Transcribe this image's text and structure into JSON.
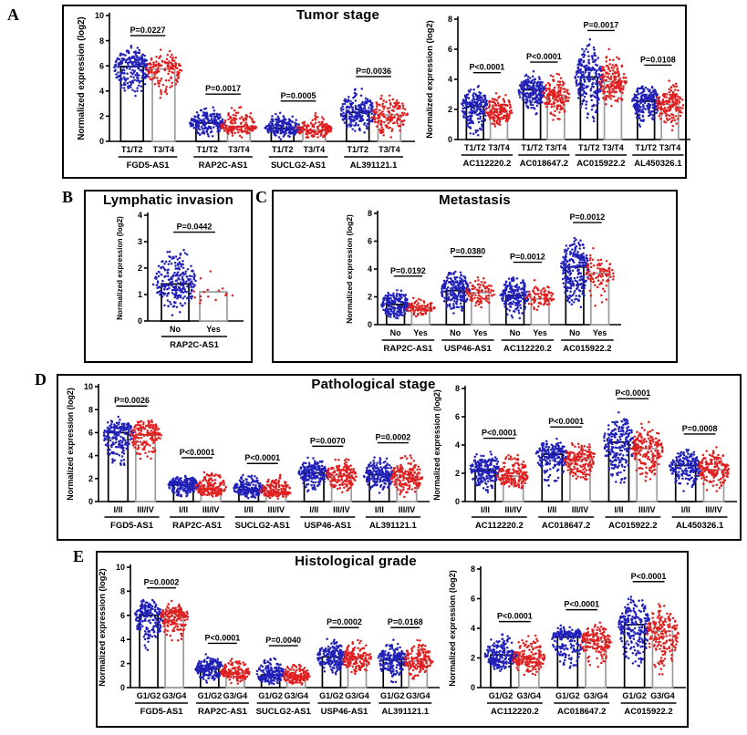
{
  "colors": {
    "blue_dots": "#2121b8",
    "red_dots": "#e02020",
    "bar_fill": "#ffffff",
    "bar_outline_first": "#000000",
    "bar_outline_second": "#9c9c9c",
    "axis": "#000000",
    "panel_border": "#000000",
    "text": "#000000"
  },
  "chart_data": [
    {
      "panel": "A",
      "label": "A",
      "title": "Tumor stage",
      "type": "scatter",
      "ylabel": "Normalized expression (log2)",
      "legend": {
        "group1_color": "blue",
        "group2_color": "red"
      },
      "plots": [
        {
          "ylim": [
            0,
            10
          ],
          "yticks": [
            0,
            2,
            4,
            6,
            8,
            10
          ],
          "group_labels": [
            "T1/T2",
            "T3/T4"
          ],
          "genes": [
            {
              "name": "FGD5-AS1",
              "p": "P=0.0227",
              "bars": [
                5.95,
                5.75
              ],
              "spread": [
                [
                  2.6,
                  7.75
                ],
                [
                  3.2,
                  7.5
                ]
              ],
              "n": [
                220,
                150
              ]
            },
            {
              "name": "RAP2C-AS1",
              "p": "P=0.0017",
              "bars": [
                1.45,
                1.2
              ],
              "spread": [
                [
                  0.25,
                  2.9
                ],
                [
                  0.2,
                  3.1
                ]
              ],
              "n": [
                190,
                140
              ]
            },
            {
              "name": "SUCLG2-AS1",
              "p": "P=0.0005",
              "bars": [
                1.05,
                0.9
              ],
              "spread": [
                [
                  0.1,
                  2.55
                ],
                [
                  0.1,
                  2.3
                ]
              ],
              "n": [
                190,
                140
              ]
            },
            {
              "name": "AL391121.1",
              "p": "P=0.0036",
              "bars": [
                2.3,
                2.1
              ],
              "spread": [
                [
                  0.3,
                  4.5
                ],
                [
                  0.1,
                  4.3
                ]
              ],
              "n": [
                220,
                160
              ]
            }
          ]
        },
        {
          "ylim": [
            0,
            8
          ],
          "yticks": [
            0,
            2,
            4,
            6,
            8
          ],
          "group_labels": [
            "T1/T2",
            "T3/T4"
          ],
          "genes": [
            {
              "name": "AC112220.2",
              "p": "P<0.0001",
              "bars": [
                2.2,
                1.9
              ],
              "spread": [
                [
                  0.05,
                  3.9
                ],
                [
                  0.7,
                  3.4
                ]
              ],
              "n": [
                200,
                150
              ]
            },
            {
              "name": "AC018647.2",
              "p": "P<0.0001",
              "bars": [
                3.3,
                2.95
              ],
              "spread": [
                [
                  1.4,
                  4.6
                ],
                [
                  1.0,
                  4.6
                ]
              ],
              "n": [
                200,
                150
              ]
            },
            {
              "name": "AC015922.2",
              "p": "P=0.0017",
              "bars": [
                4.15,
                3.85
              ],
              "spread": [
                [
                  0.5,
                  6.7
                ],
                [
                  1.6,
                  6.3
                ]
              ],
              "n": [
                240,
                170
              ]
            },
            {
              "name": "AL450326.1",
              "p": "P=0.0108",
              "bars": [
                2.55,
                2.35
              ],
              "spread": [
                [
                  0.4,
                  4.0
                ],
                [
                  0.3,
                  4.4
                ]
              ],
              "n": [
                200,
                150
              ]
            }
          ]
        }
      ]
    },
    {
      "panel": "B",
      "label": "B",
      "title": "Lymphatic invasion",
      "type": "scatter",
      "ylabel": "Normalized expression (log2)",
      "plots": [
        {
          "ylim": [
            0,
            4
          ],
          "yticks": [
            0,
            1,
            2,
            3,
            4
          ],
          "group_labels": [
            "No",
            "Yes"
          ],
          "genes": [
            {
              "name": "RAP2C-AS1",
              "p": "P=0.0442",
              "bars": [
                1.4,
                1.1
              ],
              "spread": [
                [
                  0.15,
                  3.05
                ],
                [
                  0.25,
                  1.95
                ]
              ],
              "n": [
                240,
                16
              ]
            }
          ]
        }
      ]
    },
    {
      "panel": "C",
      "label": "C",
      "title": "Metastasis",
      "type": "scatter",
      "ylabel": "Normalized expression (log2)",
      "plots": [
        {
          "ylim": [
            0,
            8
          ],
          "yticks": [
            0,
            2,
            4,
            6,
            8
          ],
          "group_labels": [
            "No",
            "Yes"
          ],
          "genes": [
            {
              "name": "RAP2C-AS1",
              "p": "P=0.0192",
              "bars": [
                1.45,
                1.2
              ],
              "spread": [
                [
                  0.2,
                  2.9
                ],
                [
                  0.4,
                  2.2
                ]
              ],
              "n": [
                200,
                80
              ]
            },
            {
              "name": "USP46-AS1",
              "p": "P=0.0380",
              "bars": [
                2.45,
                2.3
              ],
              "spread": [
                [
                  0.5,
                  4.3
                ],
                [
                  0.9,
                  3.9
                ]
              ],
              "n": [
                220,
                90
              ]
            },
            {
              "name": "AC112220.2",
              "p": "P=0.0012",
              "bars": [
                2.1,
                1.85
              ],
              "spread": [
                [
                  0.1,
                  3.9
                ],
                [
                  0.8,
                  3.5
                ]
              ],
              "n": [
                200,
                80
              ]
            },
            {
              "name": "AC015922.2",
              "p": "P=0.0012",
              "bars": [
                4.15,
                3.7
              ],
              "spread": [
                [
                  0.4,
                  6.75
                ],
                [
                  1.0,
                  6.1
                ]
              ],
              "n": [
                260,
                90
              ]
            }
          ]
        }
      ]
    },
    {
      "panel": "D",
      "label": "D",
      "title": "Pathological stage",
      "type": "scatter",
      "ylabel": "Normalized expression (log2)",
      "plots": [
        {
          "ylim": [
            0,
            10
          ],
          "yticks": [
            0,
            2,
            4,
            6,
            8,
            10
          ],
          "group_labels": [
            "I/II",
            "III/IV"
          ],
          "genes": [
            {
              "name": "FGD5-AS1",
              "p": "P=0.0026",
              "bars": [
                6.0,
                5.8
              ],
              "spread": [
                [
                  2.6,
                  7.6
                ],
                [
                  3.2,
                  7.5
                ]
              ],
              "n": [
                200,
                170
              ]
            },
            {
              "name": "RAP2C-AS1",
              "p": "P<0.0001",
              "bars": [
                1.45,
                1.15
              ],
              "spread": [
                [
                  0.2,
                  2.5
                ],
                [
                  0.2,
                  3.1
                ]
              ],
              "n": [
                190,
                160
              ]
            },
            {
              "name": "SUCLG2-AS1",
              "p": "P<0.0001",
              "bars": [
                1.05,
                0.85
              ],
              "spread": [
                [
                  0.1,
                  2.6
                ],
                [
                  0.1,
                  2.5
                ]
              ],
              "n": [
                190,
                160
              ]
            },
            {
              "name": "USP46-AS1",
              "p": "P=0.0070",
              "bars": [
                2.5,
                2.3
              ],
              "spread": [
                [
                  0.5,
                  4.1
                ],
                [
                  0.4,
                  4.1
                ]
              ],
              "n": [
                200,
                170
              ]
            },
            {
              "name": "AL391121.1",
              "p": "P=0.0002",
              "bars": [
                2.35,
                2.1
              ],
              "spread": [
                [
                  0.4,
                  4.2
                ],
                [
                  0.1,
                  4.4
                ]
              ],
              "n": [
                200,
                170
              ]
            }
          ]
        },
        {
          "ylim": [
            0,
            8
          ],
          "yticks": [
            0,
            2,
            4,
            6,
            8
          ],
          "group_labels": [
            "I/II",
            "III/IV"
          ],
          "genes": [
            {
              "name": "AC112220.2",
              "p": "P<0.0001",
              "bars": [
                2.2,
                1.8
              ],
              "spread": [
                [
                  0.5,
                  3.9
                ],
                [
                  0.5,
                  3.6
                ]
              ],
              "n": [
                200,
                170
              ]
            },
            {
              "name": "AC018647.2",
              "p": "P<0.0001",
              "bars": [
                3.35,
                3.0
              ],
              "spread": [
                [
                  0.8,
                  4.6
                ],
                [
                  1.0,
                  4.7
                ]
              ],
              "n": [
                200,
                170
              ]
            },
            {
              "name": "AC015922.2",
              "p": "P<0.0001",
              "bars": [
                4.2,
                3.75
              ],
              "spread": [
                [
                  0.3,
                  6.7
                ],
                [
                  0.8,
                  6.1
                ]
              ],
              "n": [
                230,
                190
              ]
            },
            {
              "name": "AL450326.1",
              "p": "P=0.0008",
              "bars": [
                2.55,
                2.25
              ],
              "spread": [
                [
                  0.5,
                  3.9
                ],
                [
                  0.4,
                  4.2
                ]
              ],
              "n": [
                200,
                170
              ]
            }
          ]
        }
      ]
    },
    {
      "panel": "E",
      "label": "E",
      "title": "Histological grade",
      "type": "scatter",
      "ylabel": "Normalized expression (log2)",
      "plots": [
        {
          "ylim": [
            0,
            10
          ],
          "yticks": [
            0,
            2,
            4,
            6,
            8,
            10
          ],
          "group_labels": [
            "G1/G2",
            "G3/G4"
          ],
          "genes": [
            {
              "name": "FGD5-AS1",
              "p": "P=0.0002",
              "bars": [
                6.0,
                5.9
              ],
              "spread": [
                [
                  2.6,
                  7.6
                ],
                [
                  3.3,
                  7.3
                ]
              ],
              "n": [
                200,
                160
              ]
            },
            {
              "name": "RAP2C-AS1",
              "p": "P<0.0001",
              "bars": [
                1.55,
                1.25
              ],
              "spread": [
                [
                  0.3,
                  3.0
                ],
                [
                  0.2,
                  2.6
                ]
              ],
              "n": [
                190,
                150
              ]
            },
            {
              "name": "SUCLG2-AS1",
              "p": "P=0.0040",
              "bars": [
                1.05,
                0.95
              ],
              "spread": [
                [
                  0.1,
                  2.8
                ],
                [
                  0.1,
                  2.3
                ]
              ],
              "n": [
                190,
                150
              ]
            },
            {
              "name": "USP46-AS1",
              "p": "P=0.0002",
              "bars": [
                2.55,
                2.4
              ],
              "spread": [
                [
                  0.9,
                  4.3
                ],
                [
                  0.5,
                  4.2
                ]
              ],
              "n": [
                200,
                160
              ]
            },
            {
              "name": "AL391121.1",
              "p": "P=0.0168",
              "bars": [
                2.3,
                2.2
              ],
              "spread": [
                [
                  0.1,
                  4.1
                ],
                [
                  0.4,
                  4.3
                ]
              ],
              "n": [
                200,
                160
              ]
            }
          ]
        },
        {
          "ylim": [
            0,
            8
          ],
          "yticks": [
            0,
            2,
            4,
            6,
            8
          ],
          "group_labels": [
            "G1/G2",
            "G3/G4"
          ],
          "genes": [
            {
              "name": "AC112220.2",
              "p": "P<0.0001",
              "bars": [
                2.2,
                1.95
              ],
              "spread": [
                [
                  0.9,
                  3.9
                ],
                [
                  0.5,
                  3.9
                ]
              ],
              "n": [
                210,
                170
              ]
            },
            {
              "name": "AC018647.2",
              "p": "P<0.0001",
              "bars": [
                3.4,
                3.15
              ],
              "spread": [
                [
                  0.6,
                  4.4
                ],
                [
                  1.0,
                  4.7
                ]
              ],
              "n": [
                210,
                170
              ]
            },
            {
              "name": "AC015922.2",
              "p": "P<0.0001",
              "bars": [
                4.25,
                3.8
              ],
              "spread": [
                [
                  0.6,
                  6.6
                ],
                [
                  0.3,
                  6.1
                ]
              ],
              "n": [
                240,
                190
              ]
            }
          ]
        }
      ]
    }
  ]
}
